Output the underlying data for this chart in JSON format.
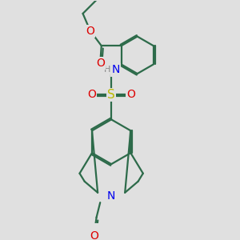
{
  "bg_color": "#e0e0e0",
  "bond_color": "#2d6b4a",
  "bond_width": 1.6,
  "atom_colors": {
    "O": "#dd0000",
    "N": "#0000ee",
    "S": "#bbbb00",
    "H": "#888888"
  },
  "font_size": 9,
  "fig_size": [
    3.0,
    3.0
  ],
  "dpi": 100
}
